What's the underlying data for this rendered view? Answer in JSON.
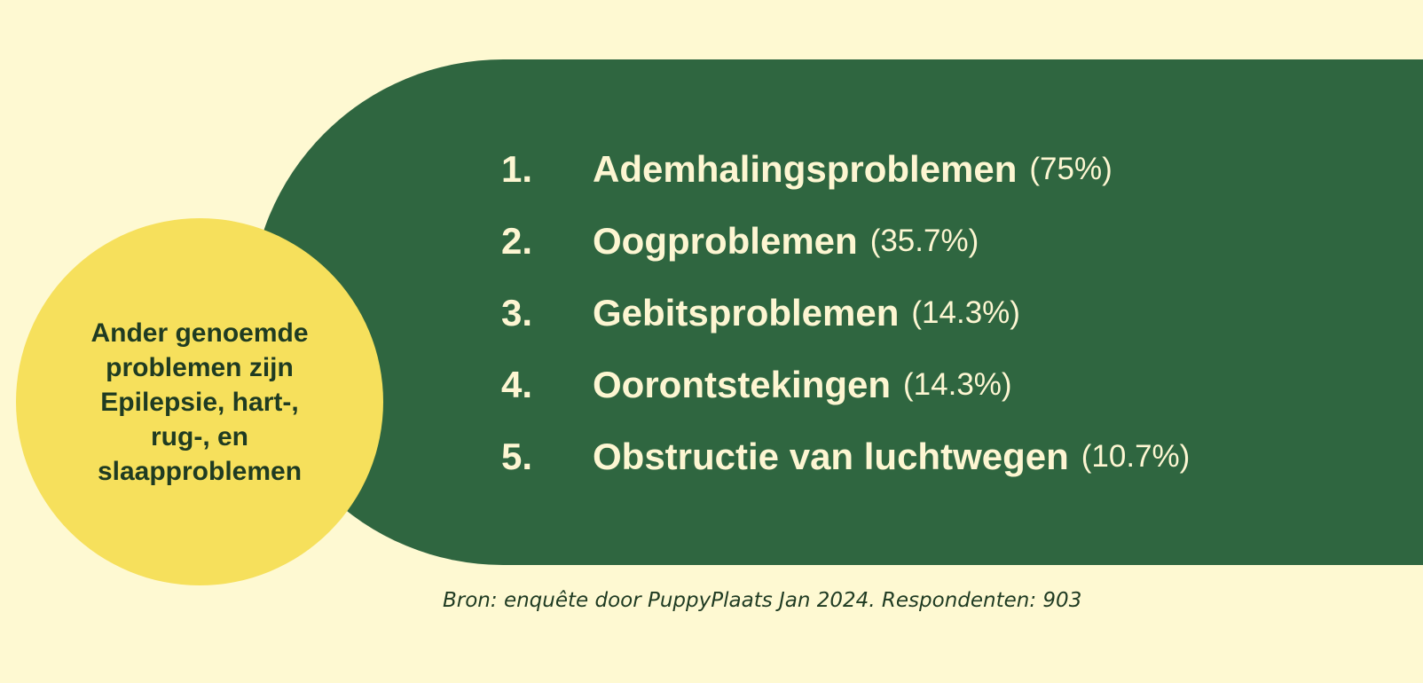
{
  "colors": {
    "background": "#fef9d2",
    "panel": "#2f6640",
    "panel_text": "#fdf6d2",
    "circle": "#f6e05c",
    "circle_text": "#1f3b22",
    "source_text": "#1f3b22"
  },
  "callout": {
    "text": "Ander genoemde problemen zijn Epilepsie, hart-, rug-, en slaapproblemen"
  },
  "list": {
    "items": [
      {
        "number": "1.",
        "title": "Ademhalingsproblemen",
        "percent": "(75%)"
      },
      {
        "number": "2.",
        "title": "Oogproblemen",
        "percent": "(35.7%)"
      },
      {
        "number": "3.",
        "title": "Gebitsproblemen",
        "percent": "(14.3%)"
      },
      {
        "number": "4.",
        "title": "Oorontstekingen",
        "percent": "(14.3%)"
      },
      {
        "number": "5.",
        "title": "Obstructie van luchtwegen",
        "percent": "(10.7%)"
      }
    ]
  },
  "source": {
    "text": "Bron: enquête door PuppyPlaats Jan 2024. Respondenten: 903"
  }
}
